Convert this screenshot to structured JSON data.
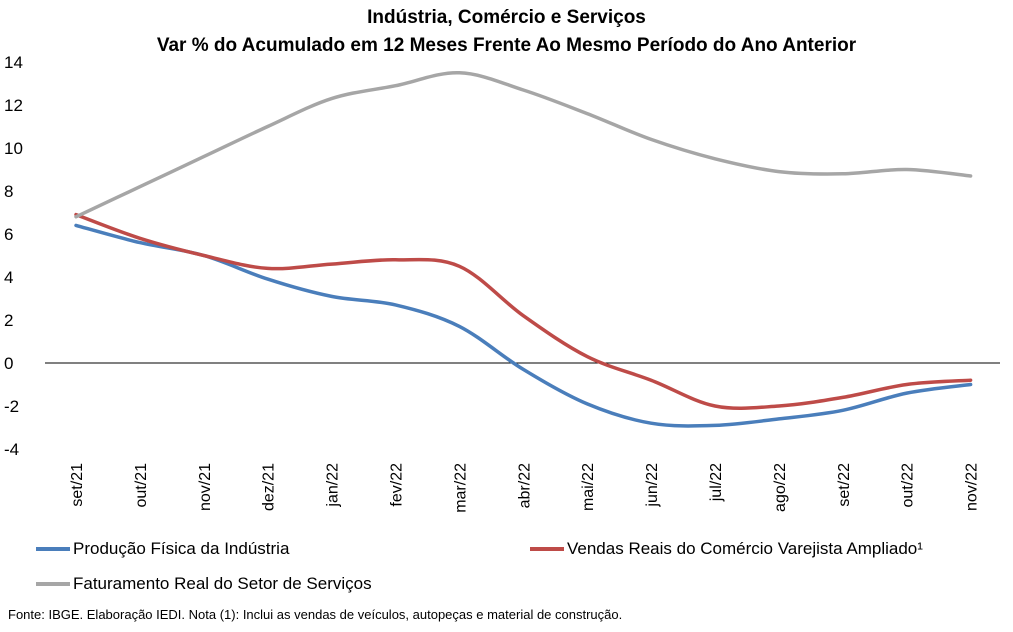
{
  "chart_data": {
    "type": "line",
    "title": "Indústria, Comércio e Serviços",
    "subtitle": "Var % do Acumulado em 12 Meses Frente Ao Mesmo Período do Ano Anterior",
    "categories": [
      "set/21",
      "out/21",
      "nov/21",
      "dez/21",
      "jan/22",
      "fev/22",
      "mar/22",
      "abr/22",
      "mai/22",
      "jun/22",
      "jul/22",
      "ago/22",
      "set/22",
      "out/22",
      "nov/22"
    ],
    "yticks": [
      "14",
      "12",
      "10",
      "8",
      "6",
      "4",
      "2",
      "0",
      "-2",
      "-4"
    ],
    "ylim": [
      -4,
      14
    ],
    "grid": false,
    "legend_position": "bottom",
    "series": [
      {
        "name": "Produção Física da Indústria",
        "color": "#4a7ebb",
        "values": [
          6.4,
          5.6,
          5.0,
          3.9,
          3.1,
          2.7,
          1.7,
          -0.3,
          -1.9,
          -2.8,
          -2.9,
          -2.6,
          -2.2,
          -1.4,
          -1.0
        ]
      },
      {
        "name": "Vendas Reais do Comércio Varejista Ampliado¹",
        "color": "#be4b48",
        "values": [
          6.9,
          5.8,
          5.0,
          4.4,
          4.6,
          4.8,
          4.5,
          2.2,
          0.3,
          -0.8,
          -2.0,
          -2.0,
          -1.6,
          -1.0,
          -0.8
        ]
      },
      {
        "name": "Faturamento Real do Setor de Serviços",
        "color": "#a6a6a6",
        "values": [
          6.8,
          8.2,
          9.6,
          11.0,
          12.3,
          12.9,
          13.5,
          12.7,
          11.6,
          10.4,
          9.5,
          8.9,
          8.8,
          9.0,
          8.7
        ]
      }
    ]
  },
  "source_note": "Fonte: IBGE. Elaboração IEDI. Nota (1): Inclui as vendas de veículos, autopeças e material de construção."
}
